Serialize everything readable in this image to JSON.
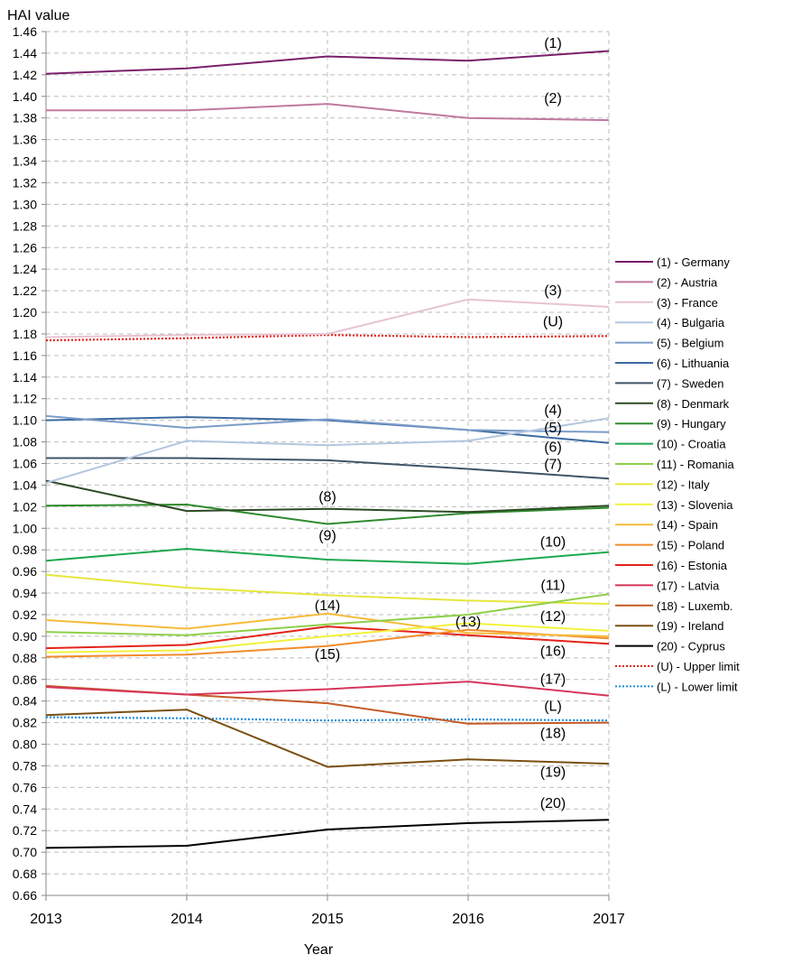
{
  "chart_data": {
    "type": "line",
    "ylabel": "HAI value",
    "xlabel": "Year",
    "x": [
      "2013",
      "2014",
      "2015",
      "2016",
      "2017"
    ],
    "ylim": [
      0.66,
      1.46
    ],
    "ytick_step": 0.02,
    "ytick_labels": [
      "0.66",
      "0.68",
      "0.70",
      "0.72",
      "0.74",
      "0.76",
      "0.78",
      "0.80",
      "0.82",
      "0.84",
      "0.86",
      "0.88",
      "0.90",
      "0.92",
      "0.94",
      "0.96",
      "0.98",
      "1.00",
      "1.02",
      "1.04",
      "1.06",
      "1.08",
      "1.10",
      "1.12",
      "1.14",
      "1.16",
      "1.18",
      "1.20",
      "1.22",
      "1.24",
      "1.26",
      "1.28",
      "1.30",
      "1.32",
      "1.34",
      "1.36",
      "1.38",
      "1.40",
      "1.42",
      "1.44",
      "1.46"
    ],
    "grid": true,
    "legend_position": "right",
    "series": [
      {
        "name": "(1) - Germany",
        "tag": "(1)",
        "color": "#7b1f6b",
        "dash": "solid",
        "values": [
          1.421,
          1.426,
          1.437,
          1.433,
          1.442
        ]
      },
      {
        "name": "(2) - Austria",
        "tag": "(2)",
        "color": "#c0799f",
        "dash": "solid",
        "values": [
          1.387,
          1.387,
          1.393,
          1.38,
          1.378
        ]
      },
      {
        "name": "(3) - France",
        "tag": "(3)",
        "color": "#e8c3d3",
        "dash": "solid",
        "values": [
          1.177,
          1.179,
          1.18,
          1.212,
          1.205
        ]
      },
      {
        "name": "(4) - Bulgaria",
        "tag": "(4)",
        "color": "#b3c6e0",
        "dash": "solid",
        "values": [
          1.042,
          1.081,
          1.077,
          1.081,
          1.102
        ]
      },
      {
        "name": "(5) - Belgium",
        "tag": "(5)",
        "color": "#7b9cc8",
        "dash": "solid",
        "values": [
          1.104,
          1.093,
          1.101,
          1.091,
          1.089
        ]
      },
      {
        "name": "(6) - Lithuania",
        "tag": "(6)",
        "color": "#3b6aa0",
        "dash": "solid",
        "values": [
          1.1,
          1.103,
          1.1,
          1.091,
          1.079
        ]
      },
      {
        "name": "(7) - Sweden",
        "tag": "(7)",
        "color": "#3f5468",
        "dash": "solid",
        "values": [
          1.065,
          1.065,
          1.063,
          1.055,
          1.046
        ]
      },
      {
        "name": "(8) - Denmark",
        "tag": "(8)",
        "color": "#2e4a25",
        "dash": "solid",
        "values": [
          1.044,
          1.016,
          1.018,
          1.015,
          1.021
        ]
      },
      {
        "name": "(9) - Hungary",
        "tag": "(9)",
        "color": "#2e8b2e",
        "dash": "solid",
        "values": [
          1.021,
          1.022,
          1.004,
          1.014,
          1.019
        ]
      },
      {
        "name": "(10) - Croatia",
        "tag": "(10)",
        "color": "#1fa84f",
        "dash": "solid",
        "values": [
          0.97,
          0.981,
          0.971,
          0.967,
          0.978
        ]
      },
      {
        "name": "(11) - Romania",
        "tag": "(11)",
        "color": "#8fcf4a",
        "dash": "solid",
        "values": [
          0.904,
          0.901,
          0.911,
          0.92,
          0.939
        ]
      },
      {
        "name": "(12) - Italy",
        "tag": "(12)",
        "color": "#e7e63d",
        "dash": "solid",
        "values": [
          0.957,
          0.945,
          0.938,
          0.933,
          0.93
        ]
      },
      {
        "name": "(13) - Slovenia",
        "tag": "(13)",
        "color": "#f2f23a",
        "dash": "solid",
        "values": [
          0.885,
          0.887,
          0.9,
          0.912,
          0.905
        ]
      },
      {
        "name": "(14) - Spain",
        "tag": "(14)",
        "color": "#f6bb3a",
        "dash": "solid",
        "values": [
          0.915,
          0.907,
          0.921,
          0.903,
          0.9
        ]
      },
      {
        "name": "(15) - Poland",
        "tag": "(15)",
        "color": "#f28b2a",
        "dash": "solid",
        "values": [
          0.881,
          0.883,
          0.891,
          0.906,
          0.898
        ]
      },
      {
        "name": "(16) - Estonia",
        "tag": "(16)",
        "color": "#e3231b",
        "dash": "solid",
        "values": [
          0.889,
          0.892,
          0.909,
          0.901,
          0.893
        ]
      },
      {
        "name": "(17) - Latvia",
        "tag": "(17)",
        "color": "#d6365a",
        "dash": "solid",
        "values": [
          0.853,
          0.846,
          0.851,
          0.858,
          0.845
        ]
      },
      {
        "name": "(18) - Luxemb.",
        "tag": "(18)",
        "color": "#c45a27",
        "dash": "solid",
        "values": [
          0.854,
          0.846,
          0.838,
          0.819,
          0.82
        ]
      },
      {
        "name": "(19) - Ireland",
        "tag": "(19)",
        "color": "#7a4f12",
        "dash": "solid",
        "values": [
          0.827,
          0.832,
          0.779,
          0.786,
          0.782
        ]
      },
      {
        "name": "(20) - Cyprus",
        "tag": "(20)",
        "color": "#000000",
        "dash": "solid",
        "values": [
          0.704,
          0.706,
          0.721,
          0.727,
          0.73
        ]
      },
      {
        "name": "(U) - Upper limit",
        "tag": "(U)",
        "color": "#e3231b",
        "dash": "dotted",
        "values": [
          1.174,
          1.176,
          1.179,
          1.177,
          1.178
        ]
      },
      {
        "name": "(L) - Lower limit",
        "tag": "(L)",
        "color": "#1f8fdc",
        "dash": "dotted",
        "values": [
          0.825,
          0.824,
          0.822,
          0.823,
          0.822
        ]
      }
    ],
    "annotations": [
      {
        "text": "(1)",
        "x": "2017",
        "y": 1.445
      },
      {
        "text": "(2)",
        "x": "2017",
        "y": 1.394
      },
      {
        "text": "(3)",
        "x": "2017",
        "y": 1.216
      },
      {
        "text": "(U)",
        "x": "2017",
        "y": 1.187
      },
      {
        "text": "(4)",
        "x": "2017",
        "y": 1.105
      },
      {
        "text": "(5)",
        "x": "2017",
        "y": 1.089
      },
      {
        "text": "(6)",
        "x": "2017",
        "y": 1.071
      },
      {
        "text": "(7)",
        "x": "2017",
        "y": 1.055
      },
      {
        "text": "(8)",
        "x": "2015",
        "y": 1.025
      },
      {
        "text": "(9)",
        "x": "2015",
        "y": 0.989
      },
      {
        "text": "(10)",
        "x": "2017",
        "y": 0.983
      },
      {
        "text": "(11)",
        "x": "2017",
        "y": 0.943
      },
      {
        "text": "(12)",
        "x": "2017",
        "y": 0.914
      },
      {
        "text": "(13)",
        "x": "2016",
        "y": 0.909
      },
      {
        "text": "(14)",
        "x": "2015",
        "y": 0.924
      },
      {
        "text": "(15)",
        "x": "2015",
        "y": 0.879
      },
      {
        "text": "(16)",
        "x": "2017",
        "y": 0.882
      },
      {
        "text": "(17)",
        "x": "2017",
        "y": 0.856
      },
      {
        "text": "(L)",
        "x": "2017",
        "y": 0.831
      },
      {
        "text": "(18)",
        "x": "2017",
        "y": 0.806
      },
      {
        "text": "(19)",
        "x": "2017",
        "y": 0.77
      },
      {
        "text": "(20)",
        "x": "2017",
        "y": 0.741
      }
    ]
  }
}
